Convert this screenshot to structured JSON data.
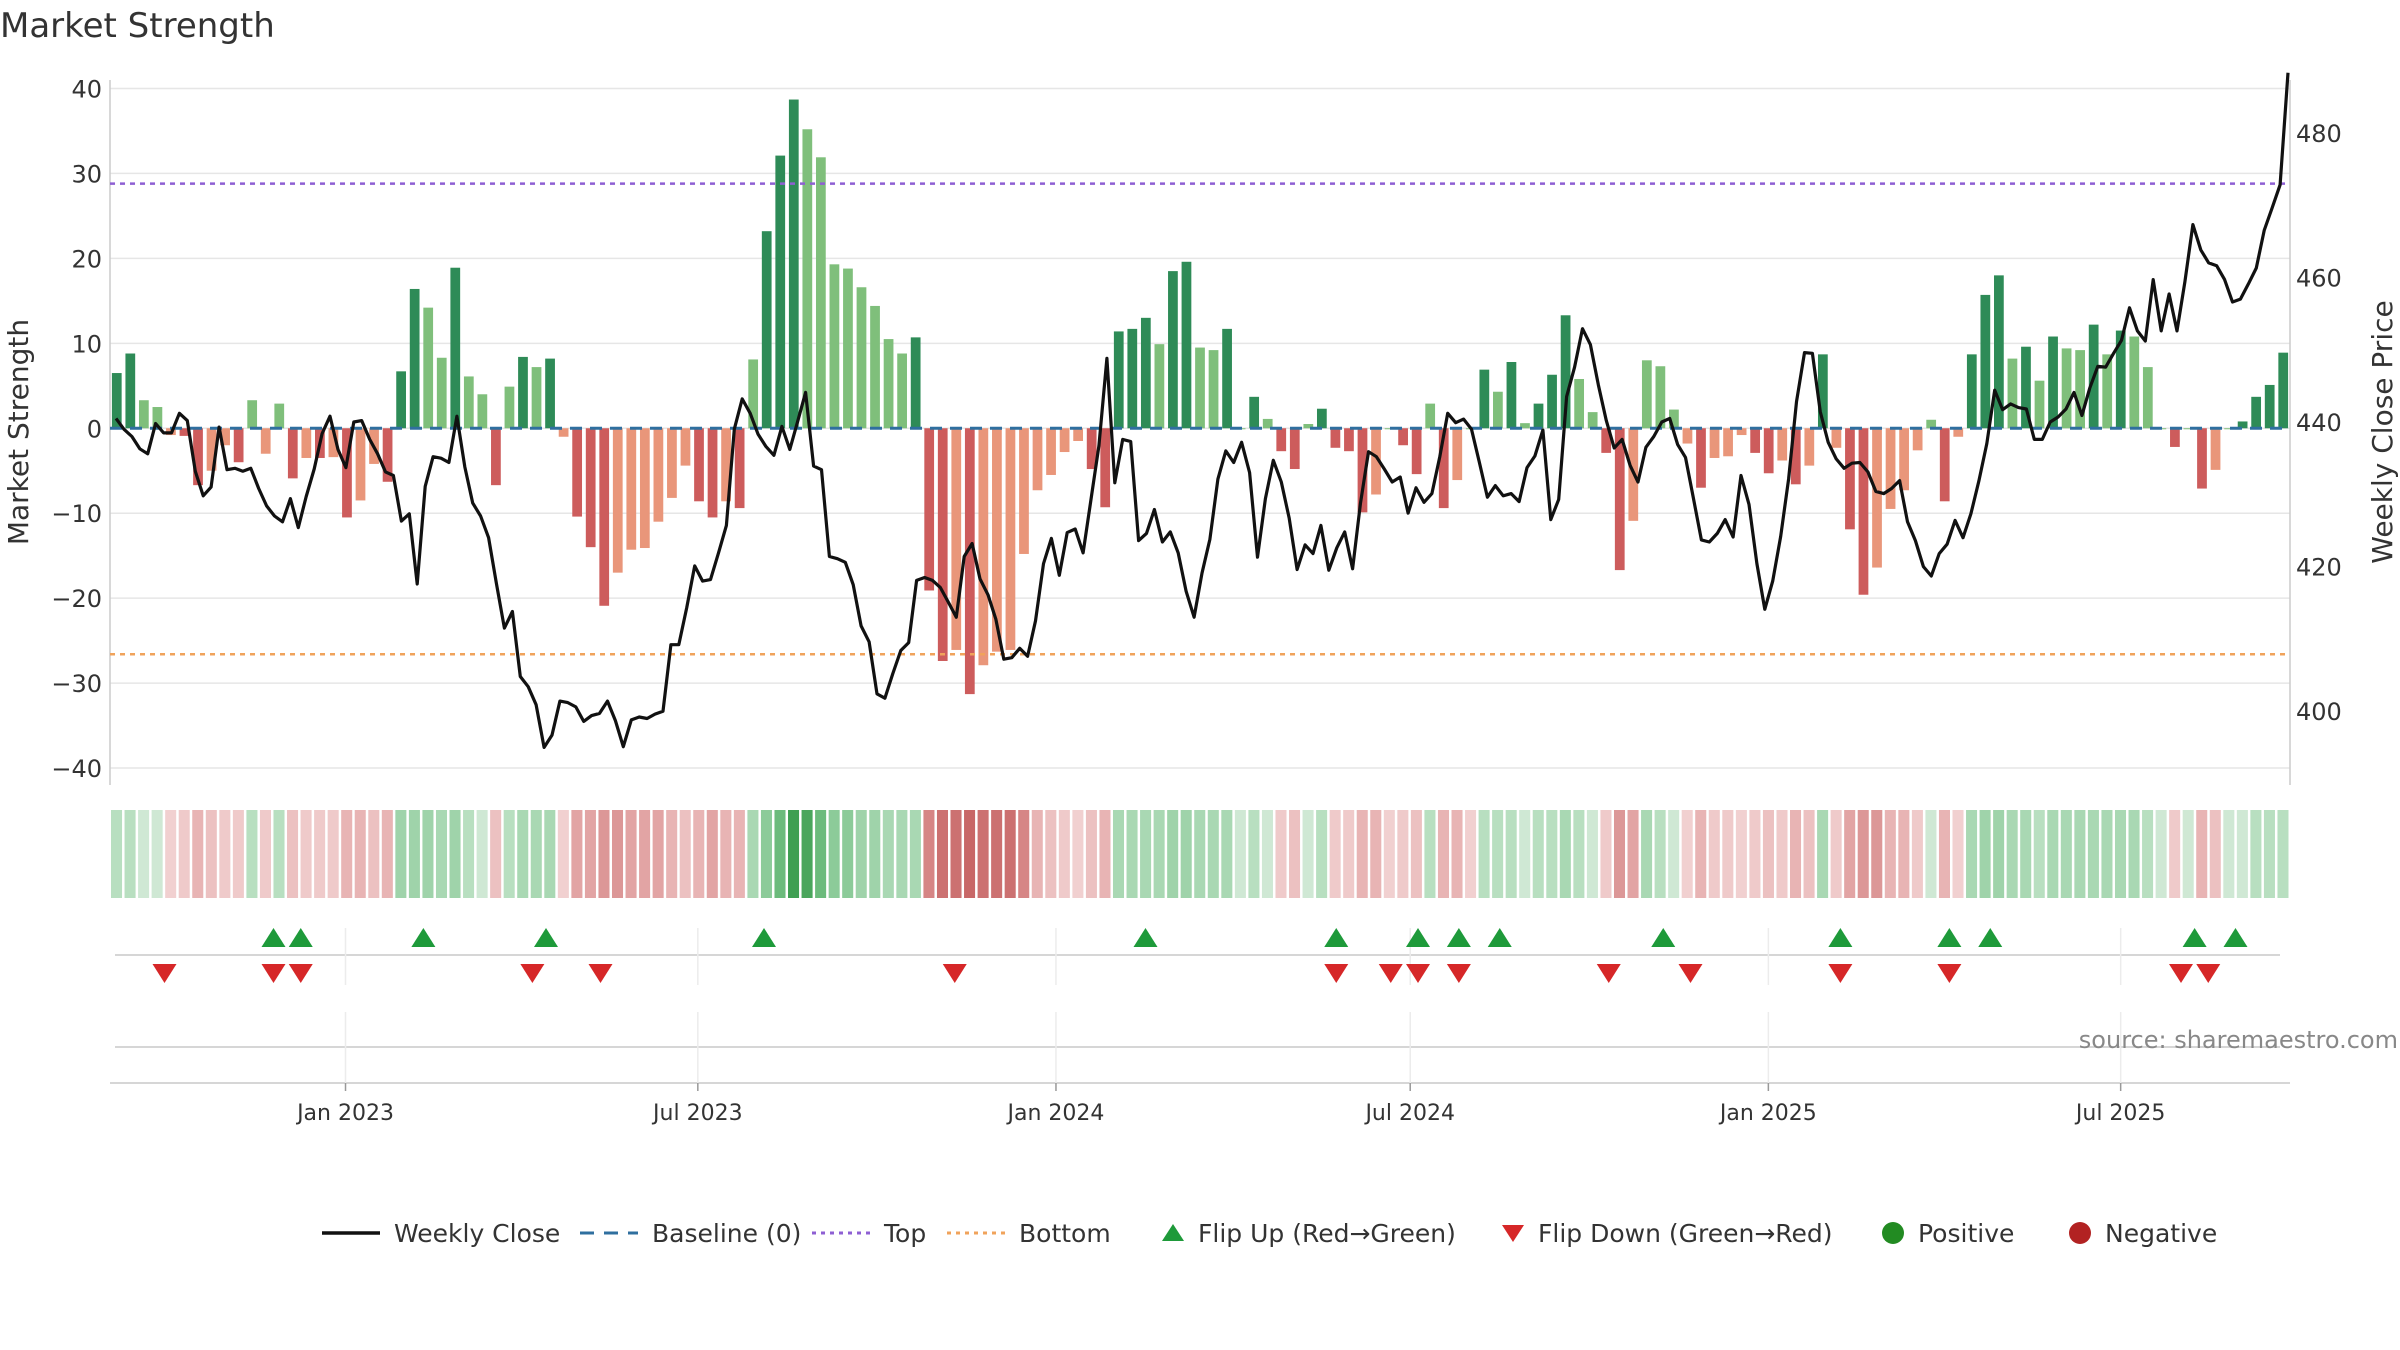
{
  "chart_data": {
    "type": "bar",
    "title": "Market Strength",
    "ylabel": "Market Strength",
    "y2label": "Weekly Close Price",
    "ylim": [
      -42,
      41
    ],
    "y2lim": [
      389.8,
      487.3
    ],
    "yticks": [
      -40,
      -30,
      -20,
      -10,
      0,
      10,
      20,
      30,
      40
    ],
    "y2ticks": [
      400,
      420,
      440,
      460,
      480
    ],
    "top_line": 28.8,
    "bottom_line": -26.6,
    "x_start": "2022-09-02",
    "x_end": "2025-09-26",
    "xticks": [
      {
        "date": "2023-01-01",
        "label": "Jan 2023"
      },
      {
        "date": "2023-07-01",
        "label": "Jul 2023"
      },
      {
        "date": "2024-01-01",
        "label": "Jan 2024"
      },
      {
        "date": "2024-07-01",
        "label": "Jul 2024"
      },
      {
        "date": "2025-01-01",
        "label": "Jan 2025"
      },
      {
        "date": "2025-07-01",
        "label": "Jul 2025"
      }
    ],
    "strength_values": [
      6.5,
      8.8,
      3.3,
      2.5,
      -0.8,
      -0.9,
      -6.7,
      -5.0,
      -2.0,
      -4.0,
      3.3,
      -3.0,
      2.9,
      -5.9,
      -3.5,
      -3.5,
      -3.4,
      -10.5,
      -8.5,
      -4.2,
      -6.3,
      6.7,
      16.4,
      14.2,
      8.3,
      18.9,
      6.1,
      4.0,
      -6.7,
      4.9,
      8.4,
      7.2,
      8.2,
      -1.0,
      -10.4,
      -14.0,
      -20.9,
      -17.0,
      -14.3,
      -14.1,
      -11.0,
      -8.2,
      -4.4,
      -8.6,
      -10.5,
      -8.6,
      -9.4,
      8.1,
      23.2,
      32.1,
      38.7,
      35.2,
      31.9,
      19.3,
      18.8,
      16.6,
      14.4,
      10.5,
      8.8,
      10.7,
      -19.1,
      -27.4,
      -26.1,
      -31.3,
      -27.9,
      -26.3,
      -26.1,
      -14.8,
      -7.3,
      -5.5,
      -2.8,
      -1.5,
      -4.8,
      -9.3,
      11.4,
      11.7,
      13.0,
      9.9,
      18.5,
      19.6,
      9.5,
      9.2,
      11.7,
      0.0,
      3.7,
      1.1,
      -2.7,
      -4.8,
      0.5,
      2.3,
      -2.3,
      -2.7,
      -9.9,
      -7.8,
      0.0,
      -2.0,
      -5.4,
      2.9,
      -9.4,
      -6.1,
      0.0,
      6.9,
      4.3,
      7.8,
      0.6,
      2.9,
      6.3,
      13.3,
      5.8,
      1.9,
      -2.9,
      -16.7,
      -10.9,
      8.0,
      7.3,
      2.2,
      -1.8,
      -7.0,
      -3.5,
      -3.3,
      -0.8,
      -2.9,
      -5.3,
      -3.8,
      -6.6,
      -4.4,
      8.7,
      -2.3,
      -11.9,
      -19.6,
      -16.4,
      -9.5,
      -7.3,
      -2.6,
      1.0,
      -8.6,
      -1.0,
      8.7,
      15.7,
      18.0,
      8.2,
      9.6,
      5.6,
      10.8,
      9.4,
      9.2,
      12.2,
      8.7,
      11.5,
      10.8,
      7.2,
      0.0,
      -2.2,
      0.0,
      -7.1,
      -4.9,
      0.0,
      0.8,
      3.7,
      5.1,
      8.9
    ],
    "weekly_close": [
      440.5,
      439.0,
      438.0,
      436.3,
      435.6,
      439.8,
      438.5,
      438.5,
      441.2,
      440.2,
      433.2,
      429.8,
      431.0,
      439.3,
      433.4,
      433.6,
      433.2,
      433.6,
      430.8,
      428.4,
      427.0,
      426.2,
      429.4,
      425.4,
      429.7,
      433.5,
      438.4,
      440.8,
      436.2,
      433.7,
      440.0,
      440.2,
      437.6,
      435.6,
      433.1,
      432.6,
      426.3,
      427.3,
      417.6,
      431.1,
      435.2,
      435.0,
      434.4,
      440.8,
      433.8,
      428.8,
      427.0,
      424.0,
      417.6,
      411.5,
      413.8,
      404.8,
      403.4,
      400.9,
      395.0,
      396.7,
      401.4,
      401.2,
      400.6,
      398.6,
      399.4,
      399.7,
      401.4,
      398.7,
      395.1,
      398.8,
      399.2,
      399.0,
      399.6,
      400.0,
      409.2,
      409.2,
      414.3,
      420.1,
      418.0,
      418.2,
      421.9,
      425.7,
      439.0,
      443.2,
      441.2,
      438.3,
      436.6,
      435.4,
      439.4,
      436.2,
      440.1,
      444.1,
      433.9,
      433.4,
      421.4,
      421.1,
      420.6,
      417.5,
      411.8,
      409.6,
      402.4,
      401.8,
      405.2,
      408.4,
      409.5,
      418.1,
      418.5,
      418.1,
      417.1,
      415.1,
      413.0,
      421.4,
      423.2,
      418.3,
      416.1,
      412.7,
      407.2,
      407.4,
      408.7,
      407.6,
      412.5,
      420.4,
      423.9,
      418.8,
      424.7,
      425.2,
      421.9,
      429.3,
      436.7,
      448.8,
      431.6,
      437.6,
      437.3,
      423.6,
      424.6,
      427.9,
      423.4,
      424.8,
      421.9,
      416.6,
      413.0,
      419.1,
      423.8,
      432.1,
      436.0,
      434.4,
      437.2,
      433.0,
      421.3,
      429.4,
      434.7,
      431.7,
      426.7,
      419.6,
      423.0,
      421.8,
      425.7,
      419.5,
      422.6,
      424.8,
      419.7,
      428.8,
      435.9,
      435.2,
      433.5,
      431.7,
      432.4,
      427.4,
      430.9,
      428.9,
      430.1,
      435.2,
      441.2,
      439.9,
      440.4,
      439.0,
      434.4,
      429.6,
      431.2,
      429.8,
      430.1,
      429.0,
      433.7,
      435.3,
      438.9,
      426.5,
      429.3,
      443.5,
      447.6,
      452.9,
      450.7,
      445.1,
      440.2,
      436.4,
      437.6,
      434.0,
      431.7,
      436.5,
      438.0,
      440.0,
      440.5,
      436.9,
      435.1,
      429.4,
      423.7,
      423.4,
      424.6,
      426.5,
      424.1,
      432.6,
      428.6,
      420.4,
      414.1,
      418.0,
      424.2,
      432.1,
      442.8,
      449.6,
      449.5,
      441.4,
      437.2,
      434.9,
      433.6,
      434.3,
      434.4,
      433.1,
      430.4,
      430.1,
      430.8,
      431.9,
      426.2,
      423.6,
      420.0,
      418.7,
      421.8,
      423.1,
      426.4,
      424.0,
      427.3,
      431.8,
      437.0,
      444.4,
      441.7,
      442.5,
      442.0,
      441.8,
      437.6,
      437.6,
      440.0,
      440.7,
      441.8,
      444.1,
      440.9,
      444.7,
      447.7,
      447.6,
      449.5,
      451.3,
      455.8,
      452.6,
      451.2,
      459.7,
      452.6,
      457.7,
      452.6,
      459.4,
      467.3,
      463.8,
      462.0,
      461.6,
      459.7,
      456.6,
      457.0,
      459.1,
      461.3,
      466.5,
      469.6,
      472.8,
      488.3
    ],
    "strip_colors": [
      "#b8dfc0",
      "#b8dfc0",
      "#cfe8d4",
      "#cfe8d4",
      "#f1d0d0",
      "#efcaca",
      "#e8b4b4",
      "#ecc1c1",
      "#efcaca",
      "#efcaca",
      "#b8dfc0",
      "#efcaca",
      "#b8dfc0",
      "#ecc1c1",
      "#efcaca",
      "#efcaca",
      "#efcaca",
      "#e8b4b4",
      "#e8b4b4",
      "#ecc1c1",
      "#e8b4b4",
      "#9fd3aa",
      "#9fd3aa",
      "#9fd3aa",
      "#a9d8b3",
      "#9fd3aa",
      "#b8dfc0",
      "#cfe8d4",
      "#ecc1c1",
      "#b8dfc0",
      "#a9d8b3",
      "#a9d8b3",
      "#a9d8b3",
      "#f1d0d0",
      "#e2a4a4",
      "#e2a4a4",
      "#dc9797",
      "#dc9797",
      "#e2a4a4",
      "#e2a4a4",
      "#e2a4a4",
      "#e8b4b4",
      "#ecc1c1",
      "#e8b4b4",
      "#e2a4a4",
      "#e8b4b4",
      "#e8b4b4",
      "#a9d8b3",
      "#8ccb99",
      "#6cbb7c",
      "#3f9f52",
      "#4aa65c",
      "#6cbb7c",
      "#8ccb99",
      "#8ccb99",
      "#9fd3aa",
      "#9fd3aa",
      "#a9d8b3",
      "#a9d8b3",
      "#a9d8b3",
      "#d68585",
      "#cc7171",
      "#cc7171",
      "#c86767",
      "#cc7171",
      "#cc7171",
      "#cc7171",
      "#d68585",
      "#e8b4b4",
      "#ecc1c1",
      "#efcaca",
      "#f1d0d0",
      "#ecc1c1",
      "#e8b4b4",
      "#a9d8b3",
      "#a9d8b3",
      "#a9d8b3",
      "#a9d8b3",
      "#9fd3aa",
      "#9fd3aa",
      "#a9d8b3",
      "#a9d8b3",
      "#a9d8b3",
      "#cfe8d4",
      "#b8dfc0",
      "#cfe8d4",
      "#efcaca",
      "#ecc1c1",
      "#cfe8d4",
      "#b8dfc0",
      "#efcaca",
      "#efcaca",
      "#e8b4b4",
      "#e8b4b4",
      "#f1d0d0",
      "#efcaca",
      "#ecc1c1",
      "#b8dfc0",
      "#e8b4b4",
      "#e8b4b4",
      "#f1d0d0",
      "#b8dfc0",
      "#b8dfc0",
      "#b8dfc0",
      "#cfe8d4",
      "#b8dfc0",
      "#b8dfc0",
      "#a9d8b3",
      "#b8dfc0",
      "#cfe8d4",
      "#efcaca",
      "#dc9797",
      "#e2a4a4",
      "#a9d8b3",
      "#b8dfc0",
      "#cfe8d4",
      "#f1d0d0",
      "#e8b4b4",
      "#efcaca",
      "#efcaca",
      "#f1d0d0",
      "#efcaca",
      "#ecc1c1",
      "#efcaca",
      "#e8b4b4",
      "#ecc1c1",
      "#a9d8b3",
      "#efcaca",
      "#e2a4a4",
      "#dc9797",
      "#dc9797",
      "#e8b4b4",
      "#e8b4b4",
      "#efcaca",
      "#cfe8d4",
      "#e8b4b4",
      "#f1d0d0",
      "#a9d8b3",
      "#9fd3aa",
      "#9fd3aa",
      "#a9d8b3",
      "#a9d8b3",
      "#b8dfc0",
      "#a9d8b3",
      "#a9d8b3",
      "#a9d8b3",
      "#a9d8b3",
      "#a9d8b3",
      "#a9d8b3",
      "#a9d8b3",
      "#b8dfc0",
      "#cfe8d4",
      "#efcaca",
      "#cfe8d4",
      "#e8b4b4",
      "#ecc1c1",
      "#cfe8d4",
      "#cfe8d4",
      "#b8dfc0",
      "#b8dfc0",
      "#b8dfc0"
    ],
    "flip_up_dates": [
      "2022-11-25",
      "2022-12-09",
      "2023-02-10",
      "2023-04-14",
      "2023-08-04",
      "2024-02-16",
      "2024-05-24",
      "2024-07-05",
      "2024-07-26",
      "2024-08-16",
      "2024-11-08",
      "2025-02-07",
      "2025-04-04",
      "2025-04-25",
      "2025-08-08",
      "2025-08-29"
    ],
    "flip_down_dates": [
      "2022-09-30",
      "2022-11-25",
      "2022-12-09",
      "2023-04-07",
      "2023-05-12",
      "2023-11-10",
      "2024-05-24",
      "2024-06-21",
      "2024-07-05",
      "2024-07-26",
      "2024-10-11",
      "2024-11-22",
      "2025-02-07",
      "2025-04-04",
      "2025-08-01",
      "2025-08-15"
    ],
    "source": "source: sharemaestro.com",
    "legend": [
      {
        "label": "Weekly Close",
        "kind": "line",
        "color": "#111111"
      },
      {
        "label": "Baseline (0)",
        "kind": "dash",
        "color": "#2f6f9f"
      },
      {
        "label": "Top",
        "kind": "dot",
        "color": "#8e5fd3"
      },
      {
        "label": "Bottom",
        "kind": "dot",
        "color": "#f0a35b"
      },
      {
        "label": "Flip Up (Red→Green)",
        "kind": "tri-up",
        "color": "#1e9a3a"
      },
      {
        "label": "Flip Down (Green→Red)",
        "kind": "tri-down",
        "color": "#d62728"
      },
      {
        "label": "Positive",
        "kind": "circle",
        "color": "#228b22"
      },
      {
        "label": "Negative",
        "kind": "circle",
        "color": "#b22222"
      }
    ],
    "colors": {
      "dark_green": "#2e8b57",
      "light_green": "#7fbf7b",
      "dark_red": "#cd5c5c",
      "light_red": "#e9967a",
      "price_line": "#111111",
      "baseline": "#2f6f9f",
      "top": "#8e5fd3",
      "bottom": "#f0a35b",
      "flip_up": "#1e9a3a",
      "flip_down": "#d62728"
    }
  }
}
